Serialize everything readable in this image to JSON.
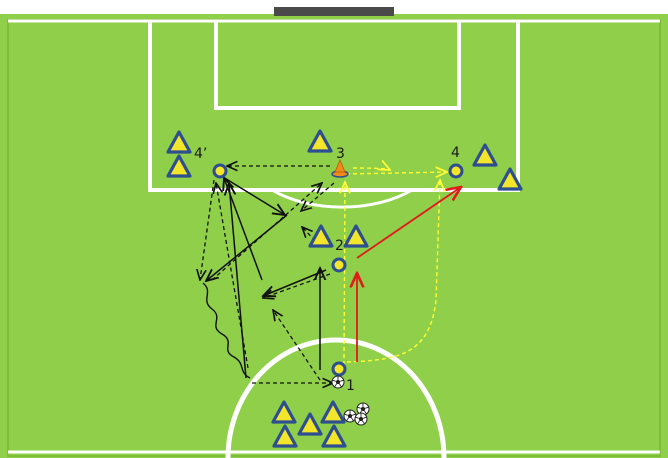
{
  "colors": {
    "pitch": "#8fcf4a",
    "pitch_border": "#7fbf3c",
    "lines": "#ffffff",
    "goal_bar": "#4a4a4a",
    "cone_fill": "#f3e52a",
    "cone_stroke": "#2e4f8f",
    "ring_fill": "#f3e52a",
    "ring_stroke": "#2e4f8f",
    "arrow_black": "#111111",
    "arrow_yellow": "#ffff33",
    "arrow_red": "#e11a1a",
    "orange_cone": "#f08a1c"
  },
  "players": {
    "p1": "1",
    "p2": "2",
    "p3": "3",
    "p4": "4",
    "p4p": "4’"
  },
  "icons": {
    "cone": "cone-triangle-icon",
    "marker": "position-ring-icon",
    "ball": "soccer-ball-icon",
    "orange_cone": "orange-cone-icon"
  }
}
